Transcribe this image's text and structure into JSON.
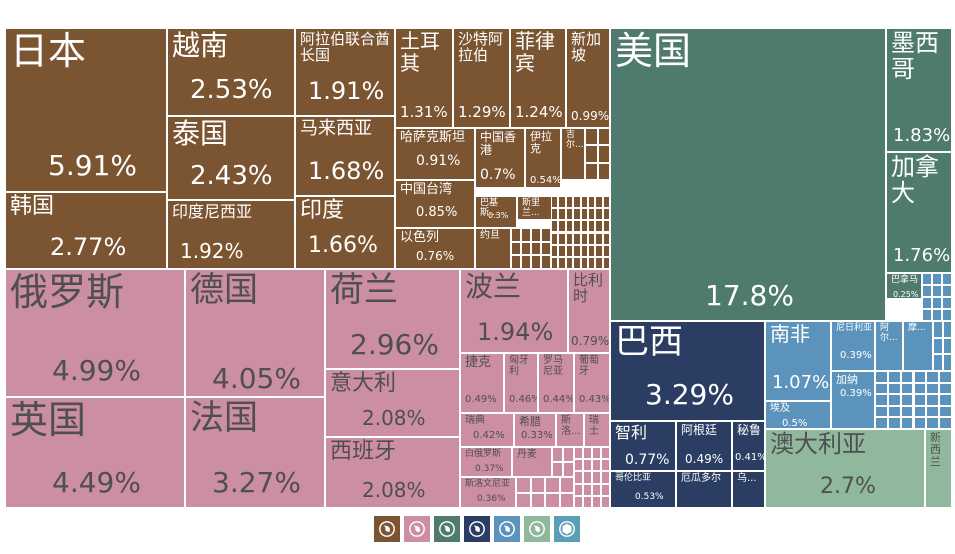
{
  "chart_data": {
    "type": "treemap",
    "colors": {
      "asia": "#7b5431",
      "europe": "#cc8ea3",
      "north_america": "#4f7a6e",
      "south_america": "#2b3d63",
      "africa": "#5b93bd",
      "oceania": "#90b89c",
      "other": "#5b9fb7"
    },
    "cells": [
      {
        "id": "jp",
        "name": "日本",
        "value": "5.91%",
        "region": "asia"
      },
      {
        "id": "vn",
        "name": "越南",
        "value": "2.53%",
        "region": "asia"
      },
      {
        "id": "sa",
        "name": "阿拉伯联合酋长国",
        "value": "1.91%",
        "region": "asia"
      },
      {
        "id": "tr",
        "name": "土耳其",
        "value": "1.31%",
        "region": "asia"
      },
      {
        "id": "saudi",
        "name": "沙特阿拉伯",
        "value": "1.29%",
        "region": "asia"
      },
      {
        "id": "ph",
        "name": "菲律宾",
        "value": "1.24%",
        "region": "asia"
      },
      {
        "id": "sg",
        "name": "新加坡",
        "value": "0.99%",
        "region": "asia"
      },
      {
        "id": "th",
        "name": "泰国",
        "value": "2.43%",
        "region": "asia"
      },
      {
        "id": "my",
        "name": "马来西亚",
        "value": "1.68%",
        "region": "asia"
      },
      {
        "id": "kz",
        "name": "哈萨克斯坦",
        "value": "0.91%",
        "region": "asia"
      },
      {
        "id": "hk",
        "name": "中国香港",
        "value": "0.7%",
        "region": "asia"
      },
      {
        "id": "jo",
        "name": "伊拉克",
        "value": "0.54%",
        "region": "asia"
      },
      {
        "id": "ji",
        "name": "吉尔...",
        "value": "",
        "region": "asia"
      },
      {
        "id": "wu",
        "name": "乌兹...",
        "value": "",
        "region": "asia"
      },
      {
        "id": "kr",
        "name": "韩国",
        "value": "2.77%",
        "region": "asia"
      },
      {
        "id": "id",
        "name": "印度尼西亚",
        "value": "1.92%",
        "region": "asia"
      },
      {
        "id": "in",
        "name": "印度",
        "value": "1.66%",
        "region": "asia"
      },
      {
        "id": "tw",
        "name": "中国台湾",
        "value": "0.85%",
        "region": "asia"
      },
      {
        "id": "pk",
        "name": "巴基斯...",
        "value": "0.3%",
        "region": "asia"
      },
      {
        "id": "lk",
        "name": "斯里兰...",
        "value": "",
        "region": "asia"
      },
      {
        "id": "il",
        "name": "以色列",
        "value": "0.76%",
        "region": "asia"
      },
      {
        "id": "jd",
        "name": "约旦",
        "value": "",
        "region": "asia"
      },
      {
        "id": "ru",
        "name": "俄罗斯",
        "value": "4.99%",
        "region": "europe"
      },
      {
        "id": "de",
        "name": "德国",
        "value": "4.05%",
        "region": "europe"
      },
      {
        "id": "nl",
        "name": "荷兰",
        "value": "2.96%",
        "region": "europe"
      },
      {
        "id": "pl",
        "name": "波兰",
        "value": "1.94%",
        "region": "europe"
      },
      {
        "id": "be",
        "name": "比利时",
        "value": "0.79%",
        "region": "europe"
      },
      {
        "id": "it",
        "name": "意大利",
        "value": "2.08%",
        "region": "europe"
      },
      {
        "id": "cz",
        "name": "捷克",
        "value": "0.49%",
        "region": "europe"
      },
      {
        "id": "hu",
        "name": "匈牙利",
        "value": "0.46%",
        "region": "europe"
      },
      {
        "id": "ro",
        "name": "罗马尼亚",
        "value": "0.44%",
        "region": "europe"
      },
      {
        "id": "pt",
        "name": "葡萄牙",
        "value": "0.43%",
        "region": "europe"
      },
      {
        "id": "se",
        "name": "瑞典",
        "value": "0.42%",
        "region": "europe"
      },
      {
        "id": "gr",
        "name": "希腊",
        "value": "0.33%",
        "region": "europe"
      },
      {
        "id": "sk",
        "name": "斯洛...",
        "value": "",
        "region": "europe"
      },
      {
        "id": "ch",
        "name": "瑞士",
        "value": "",
        "region": "europe"
      },
      {
        "id": "by",
        "name": "白俄罗斯",
        "value": "0.37%",
        "region": "europe"
      },
      {
        "id": "dk",
        "name": "丹麦",
        "value": "",
        "region": "europe"
      },
      {
        "id": "si",
        "name": "斯洛文尼亚",
        "value": "0.36%",
        "region": "europe"
      },
      {
        "id": "gb",
        "name": "英国",
        "value": "4.49%",
        "region": "europe"
      },
      {
        "id": "fr",
        "name": "法国",
        "value": "3.27%",
        "region": "europe"
      },
      {
        "id": "es",
        "name": "西班牙",
        "value": "2.08%",
        "region": "europe"
      },
      {
        "id": "us",
        "name": "美国",
        "value": "17.8%",
        "region": "north_america"
      },
      {
        "id": "mx",
        "name": "墨西哥",
        "value": "1.83%",
        "region": "north_america"
      },
      {
        "id": "ca",
        "name": "加拿大",
        "value": "1.76%",
        "region": "north_america"
      },
      {
        "id": "pa",
        "name": "巴拿马",
        "value": "0.25%",
        "region": "north_america"
      },
      {
        "id": "wei",
        "name": "危...",
        "value": "",
        "region": "north_america"
      },
      {
        "id": "br",
        "name": "巴西",
        "value": "3.29%",
        "region": "south_america"
      },
      {
        "id": "cl",
        "name": "智利",
        "value": "0.77%",
        "region": "south_america"
      },
      {
        "id": "ar",
        "name": "阿根廷",
        "value": "0.49%",
        "region": "south_america"
      },
      {
        "id": "pe",
        "name": "秘鲁",
        "value": "0.41%",
        "region": "south_america"
      },
      {
        "id": "co",
        "name": "哥伦比亚",
        "value": "0.53%",
        "region": "south_america"
      },
      {
        "id": "ec",
        "name": "厄瓜多尔",
        "value": "",
        "region": "south_america"
      },
      {
        "id": "uy",
        "name": "乌...",
        "value": "",
        "region": "south_america"
      },
      {
        "id": "za",
        "name": "南非",
        "value": "1.07%",
        "region": "africa"
      },
      {
        "id": "ng",
        "name": "尼日利亚",
        "value": "0.39%",
        "region": "africa"
      },
      {
        "id": "ao",
        "name": "阿尔...",
        "value": "",
        "region": "africa"
      },
      {
        "id": "mo",
        "name": "摩...",
        "value": "",
        "region": "africa"
      },
      {
        "id": "gh",
        "name": "加纳",
        "value": "0.39%",
        "region": "africa"
      },
      {
        "id": "eg",
        "name": "埃及",
        "value": "0.5%",
        "region": "africa"
      },
      {
        "id": "au",
        "name": "澳大利亚",
        "value": "2.7%",
        "region": "oceania"
      },
      {
        "id": "nz",
        "name": "新西兰",
        "value": "",
        "region": "oceania"
      }
    ],
    "legend": [
      "asia-icon",
      "europe-icon",
      "north-america-icon",
      "south-america-icon",
      "africa-icon",
      "oceania-icon",
      "other-icon"
    ]
  }
}
